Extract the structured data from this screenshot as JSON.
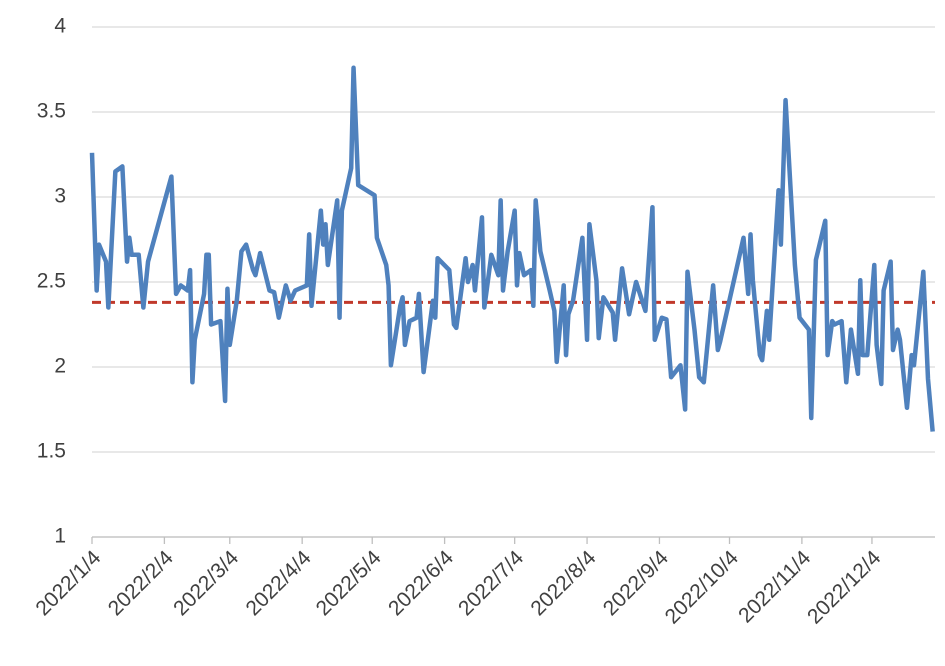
{
  "chart_data": {
    "type": "line",
    "x": [
      "2022/1/4",
      "2022/1/6",
      "2022/1/7",
      "2022/1/10",
      "2022/1/11",
      "2022/1/14",
      "2022/1/17",
      "2022/1/19",
      "2022/1/20",
      "2022/1/21",
      "2022/1/24",
      "2022/1/26",
      "2022/1/28",
      "2022/2/7",
      "2022/2/9",
      "2022/2/11",
      "2022/2/14",
      "2022/2/15",
      "2022/2/16",
      "2022/2/17",
      "2022/2/21",
      "2022/2/22",
      "2022/2/23",
      "2022/2/24",
      "2022/2/28",
      "2022/3/2",
      "2022/3/3",
      "2022/3/4",
      "2022/3/7",
      "2022/3/9",
      "2022/3/11",
      "2022/3/14",
      "2022/3/15",
      "2022/3/17",
      "2022/3/21",
      "2022/3/23",
      "2022/3/25",
      "2022/3/28",
      "2022/3/30",
      "2022/4/1",
      "2022/4/6",
      "2022/4/7",
      "2022/4/8",
      "2022/4/11",
      "2022/4/12",
      "2022/4/13",
      "2022/4/14",
      "2022/4/15",
      "2022/4/19",
      "2022/4/20",
      "2022/4/21",
      "2022/4/25",
      "2022/4/26",
      "2022/4/28",
      "2022/5/5",
      "2022/5/6",
      "2022/5/10",
      "2022/5/11",
      "2022/5/12",
      "2022/5/16",
      "2022/5/17",
      "2022/5/18",
      "2022/5/20",
      "2022/5/23",
      "2022/5/24",
      "2022/5/26",
      "2022/5/30",
      "2022/5/31",
      "2022/6/1",
      "2022/6/6",
      "2022/6/8",
      "2022/6/9",
      "2022/6/13",
      "2022/6/14",
      "2022/6/16",
      "2022/6/17",
      "2022/6/20",
      "2022/6/21",
      "2022/6/22",
      "2022/6/24",
      "2022/6/27",
      "2022/6/28",
      "2022/6/29",
      "2022/7/1",
      "2022/7/4",
      "2022/7/5",
      "2022/7/6",
      "2022/7/8",
      "2022/7/11",
      "2022/7/12",
      "2022/7/13",
      "2022/7/15",
      "2022/7/19",
      "2022/7/21",
      "2022/7/22",
      "2022/7/25",
      "2022/7/26",
      "2022/7/27",
      "2022/7/29",
      "2022/8/2",
      "2022/8/4",
      "2022/8/5",
      "2022/8/8",
      "2022/8/9",
      "2022/8/11",
      "2022/8/15",
      "2022/8/16",
      "2022/8/19",
      "2022/8/22",
      "2022/8/25",
      "2022/8/29",
      "2022/9/1",
      "2022/9/2",
      "2022/9/5",
      "2022/9/7",
      "2022/9/9",
      "2022/9/13",
      "2022/9/15",
      "2022/9/16",
      "2022/9/19",
      "2022/9/21",
      "2022/9/23",
      "2022/9/27",
      "2022/9/29",
      "2022/9/30",
      "2022/10/10",
      "2022/10/12",
      "2022/10/13",
      "2022/10/14",
      "2022/10/17",
      "2022/10/18",
      "2022/10/20",
      "2022/10/21",
      "2022/10/25",
      "2022/10/26",
      "2022/10/28",
      "2022/11/1",
      "2022/11/3",
      "2022/11/7",
      "2022/11/8",
      "2022/11/10",
      "2022/11/14",
      "2022/11/15",
      "2022/11/17",
      "2022/11/18",
      "2022/11/21",
      "2022/11/23",
      "2022/11/25",
      "2022/11/28",
      "2022/11/29",
      "2022/11/30",
      "2022/12/2",
      "2022/12/5",
      "2022/12/6",
      "2022/12/8",
      "2022/12/9",
      "2022/12/12",
      "2022/12/13",
      "2022/12/15",
      "2022/12/16",
      "2022/12/19",
      "2022/12/21",
      "2022/12/22",
      "2022/12/26",
      "2022/12/28",
      "2022/12/30"
    ],
    "series": [
      {
        "color": "#4f81bd",
        "values": [
          3.26,
          2.45,
          2.72,
          2.62,
          2.35,
          3.15,
          3.18,
          2.62,
          2.76,
          2.66,
          2.66,
          2.35,
          2.62,
          3.12,
          2.43,
          2.48,
          2.45,
          2.57,
          1.91,
          2.16,
          2.43,
          2.66,
          2.66,
          2.25,
          2.27,
          1.8,
          2.46,
          2.13,
          2.39,
          2.68,
          2.72,
          2.57,
          2.54,
          2.67,
          2.45,
          2.44,
          2.29,
          2.48,
          2.39,
          2.45,
          2.48,
          2.78,
          2.36,
          2.78,
          2.92,
          2.72,
          2.84,
          2.6,
          2.98,
          2.29,
          2.92,
          3.17,
          3.76,
          3.07,
          3.01,
          2.76,
          2.6,
          2.48,
          2.01,
          2.36,
          2.41,
          2.13,
          2.27,
          2.29,
          2.43,
          1.97,
          2.39,
          2.29,
          2.64,
          2.57,
          2.25,
          2.23,
          2.64,
          2.5,
          2.6,
          2.45,
          2.88,
          2.35,
          2.45,
          2.66,
          2.54,
          2.98,
          2.45,
          2.68,
          2.92,
          2.48,
          2.67,
          2.54,
          2.57,
          2.36,
          2.98,
          2.68,
          2.45,
          2.33,
          2.03,
          2.48,
          2.07,
          2.31,
          2.39,
          2.76,
          2.16,
          2.84,
          2.51,
          2.17,
          2.41,
          2.32,
          2.16,
          2.58,
          2.31,
          2.5,
          2.33,
          2.94,
          2.16,
          2.29,
          2.28,
          1.94,
          2.01,
          1.75,
          2.56,
          2.22,
          1.94,
          1.91,
          2.48,
          2.1,
          2.15,
          2.76,
          2.43,
          2.78,
          2.51,
          2.07,
          2.04,
          2.33,
          2.16,
          3.04,
          2.72,
          3.57,
          2.6,
          2.29,
          2.22,
          1.7,
          2.63,
          2.86,
          2.07,
          2.27,
          2.25,
          2.27,
          1.91,
          2.22,
          1.96,
          2.51,
          2.07,
          2.07,
          2.6,
          2.13,
          1.9,
          2.45,
          2.62,
          2.1,
          2.22,
          2.16,
          1.76,
          2.07,
          2.01,
          2.56,
          1.93,
          1.62
        ]
      }
    ],
    "reference_line": {
      "value": 2.38,
      "color": "#c0392b",
      "style": "dashed"
    },
    "xlim": [
      "2022/1/4",
      "2022/12/31"
    ],
    "xticks": [
      "2022/1/4",
      "2022/2/4",
      "2022/3/4",
      "2022/4/4",
      "2022/5/4",
      "2022/6/4",
      "2022/7/4",
      "2022/8/4",
      "2022/9/4",
      "2022/10/4",
      "2022/11/4",
      "2022/12/4"
    ],
    "ylim": [
      1,
      4
    ],
    "yticks": [
      1,
      1.5,
      2,
      2.5,
      3,
      3.5,
      4
    ],
    "grid": true
  }
}
